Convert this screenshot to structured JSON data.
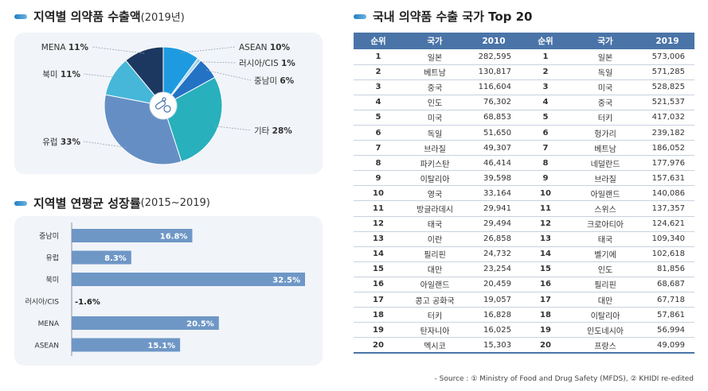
{
  "pie_section": {
    "title": "지역별 의약품 수출액",
    "subtitle": "(2019년)"
  },
  "bar_section": {
    "title": "지역별 연평균 성장률",
    "subtitle": "(2015~2019)"
  },
  "table_section": {
    "title": "국내 의약품 수출 국가 Top 20"
  },
  "source_note": "- Source : ① Ministry of Food and Drug Safety (MFDS), ② KHIDI re-edited",
  "chart_data": [
    {
      "type": "pie",
      "slices": [
        {
          "label": "ASEAN",
          "value": 10,
          "display": "10%",
          "color": "#1e9be0"
        },
        {
          "label": "러시아/CIS",
          "value": 1,
          "display": "1%",
          "color": "#a9d6ee"
        },
        {
          "label": "중남미",
          "value": 6,
          "display": "6%",
          "color": "#2472c4"
        },
        {
          "label": "기타",
          "value": 28,
          "display": "28%",
          "color": "#28b0bc"
        },
        {
          "label": "유럽",
          "value": 33,
          "display": "33%",
          "color": "#658fc4"
        },
        {
          "label": "북미",
          "value": 11,
          "display": "11%",
          "color": "#46b7d9"
        },
        {
          "label": "MENA",
          "value": 11,
          "display": "11%",
          "color": "#1c3860"
        }
      ]
    },
    {
      "type": "bar",
      "orientation": "horizontal",
      "categories": [
        "중남미",
        "유럽",
        "북미",
        "러시아/CIS",
        "MENA",
        "ASEAN"
      ],
      "values": [
        16.8,
        8.3,
        32.5,
        -1.6,
        20.5,
        15.1
      ],
      "labels": [
        "16.8%",
        "8.3%",
        "32.5%",
        "-1.6%",
        "20.5%",
        "15.1%"
      ],
      "xlim": [
        0,
        32.5
      ],
      "color": "#6e97c6"
    },
    {
      "type": "table",
      "columns": [
        "순위",
        "국가",
        "2010",
        "순위",
        "국가",
        "2019"
      ],
      "rows": [
        [
          "1",
          "일본",
          "282,595",
          "1",
          "일본",
          "573,006"
        ],
        [
          "2",
          "베트남",
          "130,817",
          "2",
          "독일",
          "571,285"
        ],
        [
          "3",
          "중국",
          "116,604",
          "3",
          "미국",
          "528,825"
        ],
        [
          "4",
          "인도",
          "76,302",
          "4",
          "중국",
          "521,537"
        ],
        [
          "5",
          "미국",
          "68,853",
          "5",
          "터키",
          "417,032"
        ],
        [
          "6",
          "독일",
          "51,650",
          "6",
          "헝가리",
          "239,182"
        ],
        [
          "7",
          "브라질",
          "49,307",
          "7",
          "베트남",
          "186,052"
        ],
        [
          "8",
          "파키스탄",
          "46,414",
          "8",
          "네덜란드",
          "177,976"
        ],
        [
          "9",
          "이탈리아",
          "39,598",
          "9",
          "브라질",
          "157,631"
        ],
        [
          "10",
          "영국",
          "33,164",
          "10",
          "아일랜드",
          "140,086"
        ],
        [
          "11",
          "방글라데시",
          "29,941",
          "11",
          "스위스",
          "137,357"
        ],
        [
          "12",
          "태국",
          "29,494",
          "12",
          "크로아티아",
          "124,621"
        ],
        [
          "13",
          "이란",
          "26,858",
          "13",
          "태국",
          "109,340"
        ],
        [
          "14",
          "필리핀",
          "24,732",
          "14",
          "벨기에",
          "102,618"
        ],
        [
          "15",
          "대만",
          "23,254",
          "15",
          "인도",
          "81,856"
        ],
        [
          "16",
          "아일랜드",
          "20,459",
          "16",
          "필리핀",
          "68,687"
        ],
        [
          "17",
          "콩고 공화국",
          "19,057",
          "17",
          "대만",
          "67,718"
        ],
        [
          "18",
          "터키",
          "16,828",
          "18",
          "이탈리아",
          "57,861"
        ],
        [
          "19",
          "탄자니아",
          "16,025",
          "19",
          "인도네시아",
          "56,994"
        ],
        [
          "20",
          "멕시코",
          "15,303",
          "20",
          "프랑스",
          "49,099"
        ]
      ]
    }
  ]
}
